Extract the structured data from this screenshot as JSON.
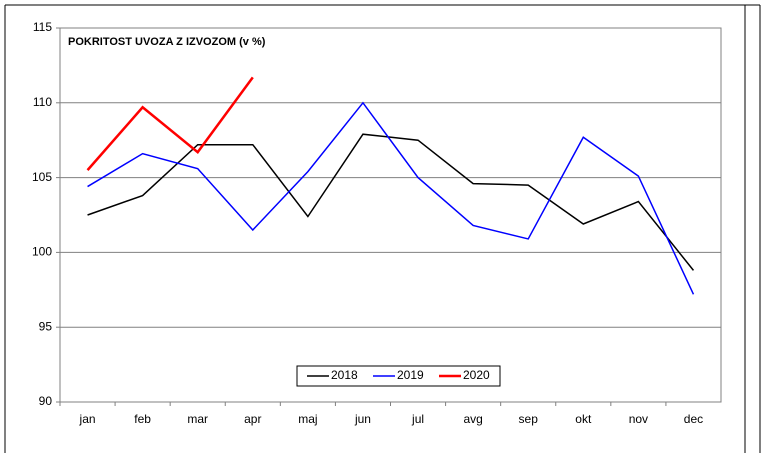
{
  "chart_data": {
    "type": "line",
    "title": "POKRITOST  UVOZA  Z IZVOZOM  (v %)",
    "categories": [
      "jan",
      "feb",
      "mar",
      "apr",
      "maj",
      "jun",
      "jul",
      "avg",
      "sep",
      "okt",
      "nov",
      "dec"
    ],
    "series": [
      {
        "name": "2018",
        "color": "#000000",
        "values": [
          102.5,
          103.8,
          107.2,
          107.2,
          102.4,
          107.9,
          107.5,
          104.6,
          104.5,
          101.9,
          103.4,
          98.8
        ]
      },
      {
        "name": "2019",
        "color": "#0000ff",
        "values": [
          104.4,
          106.6,
          105.6,
          101.5,
          105.4,
          110.0,
          105.0,
          101.8,
          100.9,
          107.7,
          105.1,
          97.2
        ]
      },
      {
        "name": "2020",
        "color": "#ff0000",
        "values": [
          105.5,
          109.7,
          106.7,
          111.7,
          null,
          null,
          null,
          null,
          null,
          null,
          null,
          null
        ]
      }
    ],
    "ylim": [
      90,
      115
    ],
    "yticks": [
      90,
      95,
      100,
      105,
      110,
      115
    ],
    "grid": true,
    "legend": "bottom"
  }
}
